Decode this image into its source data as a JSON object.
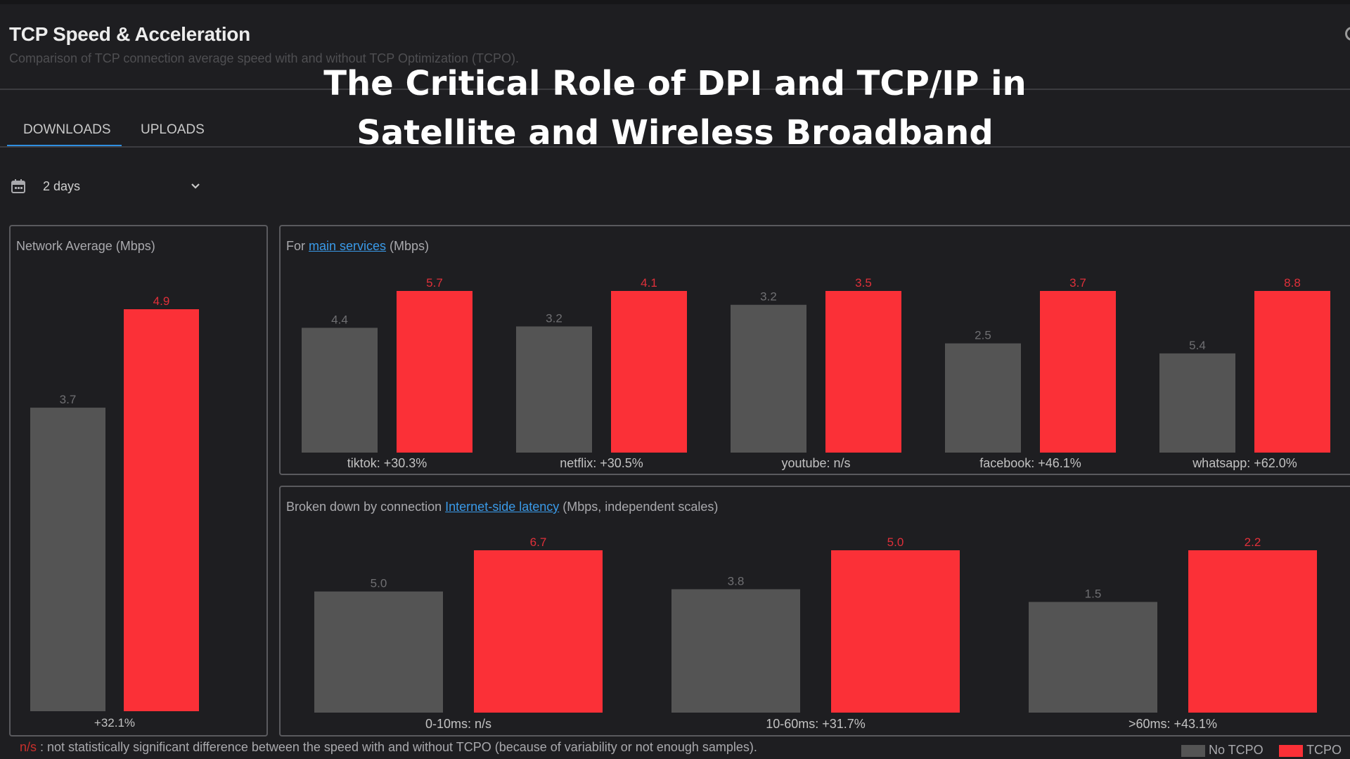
{
  "header": {
    "title": "TCP Speed & Acceleration",
    "subtitle": "Comparison of TCP connection average speed with and without TCP Optimization (TCPO)."
  },
  "overlay": {
    "line1": "The Critical Role of DPI and TCP/IP in",
    "line2": "Satellite and Wireless Broadband"
  },
  "tabs": [
    {
      "label": "DOWNLOADS",
      "active": true
    },
    {
      "label": "UPLOADS",
      "active": false
    }
  ],
  "date_selector": {
    "value": "2 days",
    "icon": "calendar-icon",
    "dropdown_icon": "chevron-down-icon"
  },
  "panels": {
    "network": {
      "title": "Network Average (Mbps)"
    },
    "services": {
      "title_prefix": "For ",
      "title_link": "main services",
      "title_suffix": " (Mbps)"
    },
    "latency": {
      "title_prefix": "Broken down by connection ",
      "title_link": "Internet-side latency",
      "title_suffix": " (Mbps, independent scales)"
    }
  },
  "colors": {
    "no_tcpo": "#545454",
    "tcpo": "#fb3037",
    "value_no_tcpo": "#6f6f72",
    "value_tcpo": "#e0303a",
    "label": "#c2c2c2"
  },
  "chart_data": [
    {
      "type": "bar",
      "title": "Network Average (Mbps)",
      "categories": [
        "+32.1%"
      ],
      "series": [
        {
          "name": "No TCPO",
          "values": [
            3.7
          ]
        },
        {
          "name": "TCPO",
          "values": [
            4.9
          ]
        }
      ],
      "scale": "independent"
    },
    {
      "type": "bar",
      "title": "For main services (Mbps)",
      "categories": [
        "tiktok: +30.3%",
        "netflix: +30.5%",
        "youtube: n/s",
        "facebook: +46.1%",
        "whatsapp: +62.0%"
      ],
      "series": [
        {
          "name": "No TCPO",
          "values": [
            4.4,
            3.2,
            3.2,
            2.5,
            5.4
          ]
        },
        {
          "name": "TCPO",
          "values": [
            5.7,
            4.1,
            3.5,
            3.7,
            8.8
          ]
        }
      ],
      "scale": "independent"
    },
    {
      "type": "bar",
      "title": "Broken down by connection Internet-side latency (Mbps, independent scales)",
      "categories": [
        "0-10ms: n/s",
        "10-60ms: +31.7%",
        ">60ms: +43.1%"
      ],
      "series": [
        {
          "name": "No TCPO",
          "values": [
            5.0,
            3.8,
            1.5
          ]
        },
        {
          "name": "TCPO",
          "values": [
            6.7,
            5.0,
            2.2
          ]
        }
      ],
      "scale": "independent"
    }
  ],
  "footnote": {
    "marker": "n/s",
    "text": " : not statistically significant difference between the speed with and without TCPO (because of variability or not enough samples)."
  },
  "legend": [
    {
      "label": "No TCPO",
      "color": "#545454"
    },
    {
      "label": "TCPO",
      "color": "#fb3037"
    }
  ]
}
